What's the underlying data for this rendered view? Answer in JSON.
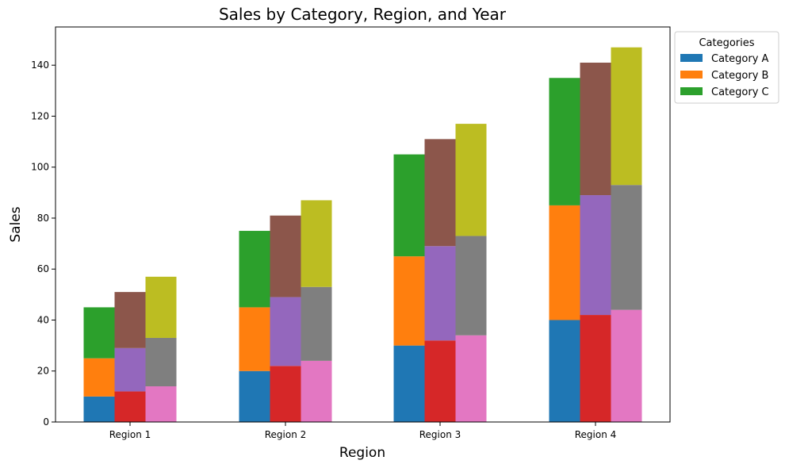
{
  "chart_data": {
    "type": "bar",
    "stacked": true,
    "title": "Sales by Category, Region, and Year",
    "xlabel": "Region",
    "ylabel": "Sales",
    "ylim": [
      0,
      155
    ],
    "yticks": [
      0,
      20,
      40,
      60,
      80,
      100,
      120,
      140
    ],
    "categories": [
      "Region 1",
      "Region 2",
      "Region 3",
      "Region 4"
    ],
    "groups": [
      {
        "segments": [
          {
            "values": [
              10,
              20,
              30,
              40
            ],
            "color": "#1f77b4"
          },
          {
            "values": [
              15,
              25,
              35,
              45
            ],
            "color": "#ff7f0e"
          },
          {
            "values": [
              20,
              30,
              40,
              50
            ],
            "color": "#2ca02c"
          }
        ]
      },
      {
        "segments": [
          {
            "values": [
              12,
              22,
              32,
              42
            ],
            "color": "#d62728"
          },
          {
            "values": [
              17,
              27,
              37,
              47
            ],
            "color": "#9467bd"
          },
          {
            "values": [
              22,
              32,
              42,
              52
            ],
            "color": "#8c564b"
          }
        ]
      },
      {
        "segments": [
          {
            "values": [
              14,
              24,
              34,
              44
            ],
            "color": "#e377c2"
          },
          {
            "values": [
              19,
              29,
              39,
              49
            ],
            "color": "#7f7f7f"
          },
          {
            "values": [
              24,
              34,
              44,
              54
            ],
            "color": "#bcbd22"
          }
        ]
      }
    ],
    "legend": {
      "title": "Categories",
      "placement": "outside-right",
      "entries": [
        {
          "label": "Category A",
          "color": "#1f77b4"
        },
        {
          "label": "Category B",
          "color": "#ff7f0e"
        },
        {
          "label": "Category C",
          "color": "#2ca02c"
        }
      ]
    },
    "grid": false
  }
}
